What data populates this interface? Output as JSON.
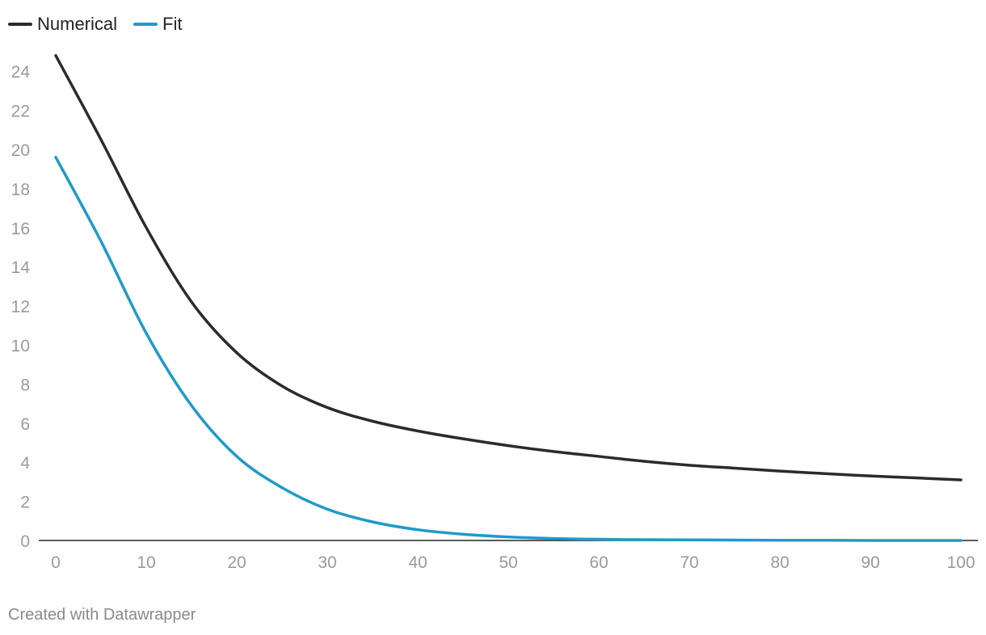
{
  "chart_data": {
    "type": "line",
    "title": "",
    "xlabel": "",
    "ylabel": "",
    "xlim": [
      0,
      100
    ],
    "ylim": [
      0,
      25
    ],
    "xticks": [
      0,
      10,
      20,
      30,
      40,
      50,
      60,
      70,
      80,
      90,
      100
    ],
    "yticks": [
      0,
      2,
      4,
      6,
      8,
      10,
      12,
      14,
      16,
      18,
      20,
      22,
      24
    ],
    "grid": false,
    "legend_position": "top-left",
    "series": [
      {
        "name": "Numerical",
        "color": "#2b2b2b",
        "x": [
          0,
          5,
          10,
          15,
          20,
          25,
          30,
          35,
          40,
          45,
          50,
          55,
          60,
          65,
          70,
          75,
          80,
          85,
          90,
          95,
          100
        ],
        "y": [
          24.8,
          20.5,
          16.0,
          12.2,
          9.6,
          7.9,
          6.8,
          6.1,
          5.6,
          5.2,
          4.85,
          4.55,
          4.3,
          4.05,
          3.85,
          3.7,
          3.55,
          3.42,
          3.3,
          3.2,
          3.1
        ]
      },
      {
        "name": "Fit",
        "color": "#1f9ac9",
        "x": [
          0,
          5,
          10,
          15,
          20,
          25,
          30,
          35,
          40,
          45,
          50,
          55,
          60,
          65,
          70,
          75,
          80,
          85,
          90,
          95,
          100
        ],
        "y": [
          19.6,
          15.3,
          10.6,
          6.9,
          4.3,
          2.7,
          1.6,
          0.95,
          0.55,
          0.32,
          0.18,
          0.1,
          0.06,
          0.04,
          0.03,
          0.02,
          0.01,
          0.01,
          0.0,
          0.0,
          0.0
        ]
      }
    ]
  },
  "credit": "Created with Datawrapper"
}
